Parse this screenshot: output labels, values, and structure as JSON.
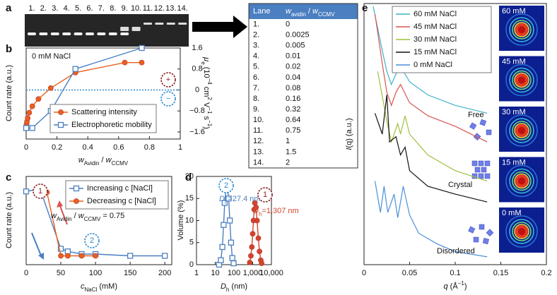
{
  "panel_labels": [
    "a",
    "b",
    "c",
    "d",
    "e"
  ],
  "gel": {
    "lanes": [
      "1.",
      "2.",
      "3.",
      "4.",
      "5.",
      "6.",
      "7.",
      "8.",
      "9.",
      "10.",
      "11.",
      "12.",
      "13.",
      "14."
    ]
  },
  "table": {
    "header": [
      [
        {
          "text": "Lane"
        }
      ],
      [
        {
          "text": "w",
          "italic": true
        },
        {
          "text": "avidin",
          "sub": true
        },
        {
          "text": " / "
        },
        {
          "text": "w",
          "italic": true
        },
        {
          "text": "CCMV",
          "sub": true
        }
      ]
    ],
    "rows": [
      [
        "1.",
        "0"
      ],
      [
        "2.",
        "0.0025"
      ],
      [
        "3.",
        "0.005"
      ],
      [
        "4.",
        "0.01"
      ],
      [
        "5.",
        "0.02"
      ],
      [
        "6.",
        "0.04"
      ],
      [
        "7.",
        "0.08"
      ],
      [
        "8.",
        "0.16"
      ],
      [
        "9.",
        "0.32"
      ],
      [
        "10.",
        "0.64"
      ],
      [
        "11.",
        "0.75"
      ],
      [
        "12.",
        "1"
      ],
      [
        "13.",
        "1.5"
      ],
      [
        "14.",
        "2"
      ]
    ]
  },
  "saxs_images": [
    "60 mM",
    "45 mM",
    "30 mM",
    "15 mM",
    "0 mM"
  ],
  "chart_data": [
    {
      "type": "line",
      "xlabel": [
        {
          "text": "w",
          "italic": true
        },
        {
          "text": "Avidin",
          "sub": true
        },
        {
          "text": " / "
        },
        {
          "text": "w",
          "italic": true
        },
        {
          "text": "CCMV",
          "sub": true
        }
      ],
      "ylabel": [
        {
          "text": "Count rate (a.u.)"
        }
      ],
      "y2label": [
        {
          "text": "μ",
          "italic": true
        },
        {
          "text": "e",
          "sub": true
        },
        {
          "text": " (10"
        },
        {
          "text": "−4",
          "sup": true
        },
        {
          "text": " cm"
        },
        {
          "text": "2",
          "sup": true
        },
        {
          "text": " V"
        },
        {
          "text": "−1",
          "sup": true
        },
        {
          "text": " s"
        },
        {
          "text": "−1",
          "sup": true
        },
        {
          "text": ")"
        }
      ],
      "xlim": [
        0,
        1
      ],
      "xticks": [
        0,
        0.2,
        0.4,
        0.6,
        0.8,
        1
      ],
      "ylim": [
        0,
        1
      ],
      "y2lim": [
        -1.87,
        1.6
      ],
      "y2ticks": [
        1.6,
        0.8,
        0,
        {
          "value": -0.8,
          "label": "−0.8"
        },
        {
          "value": -1.6,
          "label": "−1.6"
        }
      ],
      "hline": {
        "axis": "y2",
        "value": 0,
        "color": "#2a8ad4"
      },
      "series": [
        {
          "name": "Scattering intensity",
          "color": "#e8601c",
          "marker": "circle",
          "x": [
            0,
            0.0025,
            0.005,
            0.01,
            0.02,
            0.04,
            0.08,
            0.16,
            0.32,
            0.64,
            0.75
          ],
          "values": [
            0.12,
            0.16,
            0.19,
            0.23,
            0.29,
            0.36,
            0.44,
            0.56,
            0.73,
            0.84,
            0.84
          ]
        },
        {
          "name": "Electrophoretic mobility",
          "color": "#4a7fc1",
          "marker": "square",
          "axis": "y2",
          "x": [
            0,
            0.04,
            0.16,
            0.32,
            0.75
          ],
          "values": [
            -1.45,
            -1.45,
            -0.8,
            0.8,
            1.6
          ]
        }
      ],
      "legend": "lower center",
      "annotations": [
        {
          "text": "0 mM NaCl"
        },
        {
          "text": "+",
          "color": "#8b1a1a",
          "circle": true
        },
        {
          "text": "−",
          "color": "#2a8ad4",
          "circle": true
        }
      ]
    },
    {
      "type": "line",
      "xlabel": [
        {
          "text": "c",
          "italic": true
        },
        {
          "text": "NaCl",
          "sub": true
        },
        {
          "text": " (mM)"
        }
      ],
      "ylabel": [
        {
          "text": "Count rate (a.u.)"
        }
      ],
      "xlim": [
        0,
        210
      ],
      "xticks": [
        0,
        50,
        100,
        150,
        200
      ],
      "ylim": [
        0,
        1
      ],
      "series": [
        {
          "name": "Increasing c [NaCl]",
          "color": "#4a7fc1",
          "marker": "square",
          "x": [
            0,
            20,
            50,
            60,
            80,
            100,
            150,
            200
          ],
          "values": [
            0.83,
            0.86,
            0.18,
            0.15,
            0.12,
            0.12,
            0.1,
            0.1
          ]
        },
        {
          "name": "Decreasing c [NaCl]",
          "color": "#e8601c",
          "marker": "circle",
          "x": [
            20,
            25,
            30,
            50,
            60,
            80,
            100
          ],
          "values": [
            0.84,
            0.84,
            0.82,
            0.1,
            0.1,
            0.1,
            0.1
          ]
        }
      ],
      "legend": "upper right",
      "annotations": [
        {
          "parts": [
            {
              "text": "w",
              "italic": true
            },
            {
              "text": "Avidin",
              "sub": true
            },
            {
              "text": " / "
            },
            {
              "text": "w",
              "italic": true
            },
            {
              "text": "CCMV",
              "sub": true
            },
            {
              "text": " = 0.75"
            }
          ]
        },
        {
          "text": "1",
          "color": "#8b1a1a",
          "circle": true
        },
        {
          "text": "2",
          "color": "#2a8ad4",
          "circle": true
        }
      ]
    },
    {
      "type": "line",
      "xscale": "log",
      "xlabel": [
        {
          "text": "D",
          "italic": true
        },
        {
          "text": "h",
          "sub": true
        },
        {
          "text": " (nm)"
        }
      ],
      "ylabel": [
        {
          "text": "Volume (%)"
        }
      ],
      "xlim": [
        1,
        10000
      ],
      "xticks": [
        1,
        10,
        100,
        {
          "value": 1000,
          "label": "1,000"
        },
        {
          "value": 10000,
          "label": "10,000"
        }
      ],
      "ylim": [
        0,
        20
      ],
      "yticks": [
        0,
        5,
        10,
        15,
        20
      ],
      "series": [
        {
          "color": "#4a7fc1",
          "marker": "square",
          "x": [
            16,
            20,
            24,
            28,
            32,
            38,
            44,
            52,
            60,
            70,
            82,
            96
          ],
          "values": [
            0,
            1,
            4,
            9,
            14,
            17.5,
            18,
            15,
            10,
            5,
            1.5,
            0.3
          ]
        },
        {
          "color": "#d2452a",
          "marker": "circle",
          "x": [
            700,
            800,
            900,
            1000,
            1100,
            1200,
            1300,
            1500,
            1700,
            2000,
            2300,
            2700,
            3000
          ],
          "values": [
            0.5,
            2,
            4,
            7,
            10,
            12.5,
            14,
            13,
            10,
            6,
            3,
            1,
            0.3
          ]
        }
      ],
      "annotations": [
        {
          "parts": [
            {
              "text": "D",
              "italic": true
            },
            {
              "text": "h",
              "sub": true
            },
            {
              "text": "=27.4 nm"
            }
          ],
          "color": "#4a7fc1"
        },
        {
          "parts": [
            {
              "text": "D",
              "italic": true
            },
            {
              "text": "h",
              "sub": true
            },
            {
              "text": "=1,307 nm"
            }
          ],
          "color": "#d2452a"
        },
        {
          "text": "2",
          "color": "#2a8ad4",
          "circle": true
        },
        {
          "text": "1",
          "color": "#8b1a1a",
          "circle": true
        }
      ]
    },
    {
      "type": "line",
      "xlabel": [
        {
          "text": "q",
          "italic": true
        },
        {
          "text": " (Å"
        },
        {
          "text": "−1",
          "sup": true
        },
        {
          "text": ")"
        }
      ],
      "ylabel": [
        {
          "text": "I",
          "italic": true
        },
        {
          "text": "(q) (a.u.)"
        }
      ],
      "xlim": [
        0,
        0.2
      ],
      "xticks": [
        0,
        0.05,
        0.1,
        0.15,
        0.2
      ],
      "ylim": [
        0,
        1
      ],
      "series": [
        {
          "name": "60 mM NaCl",
          "color": "#3fb1c9",
          "x": [
            0.01,
            0.02,
            0.025,
            0.03,
            0.035,
            0.04,
            0.05,
            0.07,
            0.1,
            0.135
          ],
          "values": [
            0.99,
            0.82,
            0.74,
            0.69,
            0.73,
            0.76,
            0.7,
            0.65,
            0.61,
            0.58
          ]
        },
        {
          "name": "45 mM NaCl",
          "color": "#d9534f",
          "x": [
            0.012,
            0.02,
            0.025,
            0.03,
            0.035,
            0.04,
            0.05,
            0.07,
            0.1,
            0.135
          ],
          "values": [
            0.96,
            0.77,
            0.66,
            0.61,
            0.66,
            0.69,
            0.62,
            0.57,
            0.53,
            0.47
          ]
        },
        {
          "name": "30 mM NaCl",
          "color": "#9bc23c",
          "x": [
            0.015,
            0.025,
            0.03,
            0.037,
            0.04,
            0.045,
            0.05,
            0.07,
            0.1,
            0.135
          ],
          "values": [
            0.74,
            0.55,
            0.47,
            0.54,
            0.5,
            0.57,
            0.5,
            0.42,
            0.36,
            0.32
          ]
        },
        {
          "name": "15 mM NaCl",
          "color": "#111111",
          "x": [
            0.012,
            0.02,
            0.025,
            0.028,
            0.035,
            0.04,
            0.045,
            0.05,
            0.07,
            0.1,
            0.135
          ],
          "values": [
            0.58,
            0.5,
            0.65,
            0.47,
            0.49,
            0.42,
            0.45,
            0.36,
            0.3,
            0.27,
            0.24
          ]
        },
        {
          "name": "0 mM NaCl",
          "color": "#4a90d9",
          "x": [
            0.012,
            0.018,
            0.022,
            0.026,
            0.033,
            0.037,
            0.043,
            0.05,
            0.06,
            0.08,
            0.1,
            0.135
          ],
          "values": [
            0.32,
            0.2,
            0.3,
            0.2,
            0.27,
            0.18,
            0.3,
            0.19,
            0.12,
            0.08,
            0.05,
            0.03
          ]
        }
      ],
      "legend": "upper left",
      "annotations": [
        {
          "text": "Free"
        },
        {
          "text": "Crystal"
        },
        {
          "text": "Disordered"
        }
      ]
    }
  ]
}
